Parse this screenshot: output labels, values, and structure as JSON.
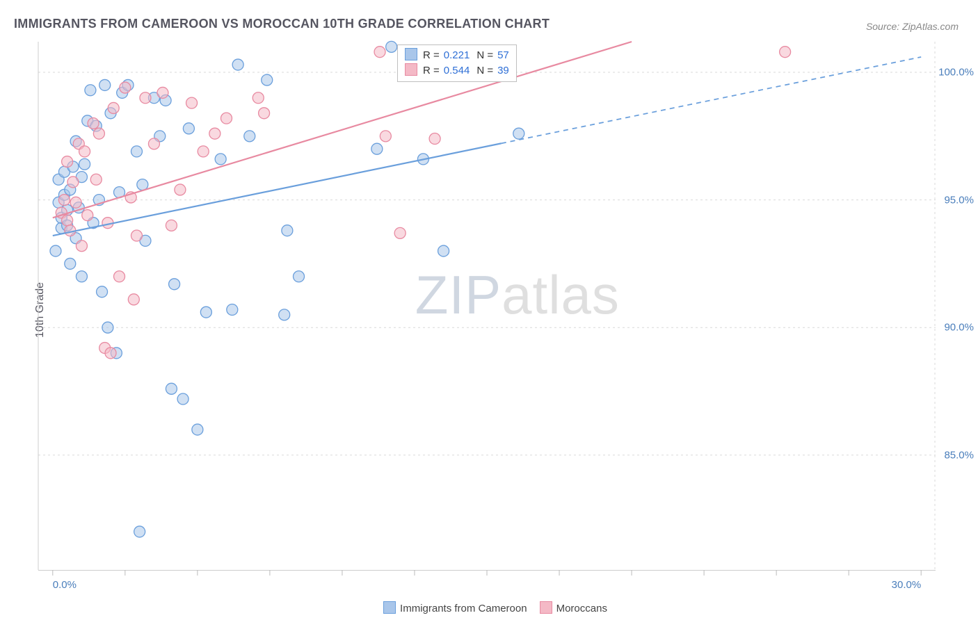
{
  "title": "IMMIGRANTS FROM CAMEROON VS MOROCCAN 10TH GRADE CORRELATION CHART",
  "source": "Source: ZipAtlas.com",
  "ylabel": "10th Grade",
  "watermark": {
    "zip": "ZIP",
    "atlas": "atlas"
  },
  "chart": {
    "type": "scatter",
    "background_color": "#ffffff",
    "grid_color": "#d9d9d9",
    "axis_color": "#cccccc",
    "tick_color": "#bbbbbb",
    "xlim": [
      -0.5,
      30.5
    ],
    "ylim": [
      80.5,
      101.2
    ],
    "y_ticks": [
      85.0,
      90.0,
      95.0,
      100.0
    ],
    "y_tick_labels": [
      "85.0%",
      "90.0%",
      "95.0%",
      "100.0%"
    ],
    "x_tick_end_labels": {
      "left": "0.0%",
      "right": "30.0%"
    },
    "x_minor_ticks": [
      0,
      2.5,
      5,
      7.5,
      10,
      12.5,
      15,
      17.5,
      20,
      22.5,
      25,
      27.5,
      30
    ],
    "marker_radius": 8,
    "marker_stroke_width": 1.3,
    "line_width": 2.2,
    "series": [
      {
        "name": "Immigrants from Cameroon",
        "fill_color": "#a9c6ea",
        "stroke_color": "#6a9fdc",
        "fill_opacity": 0.55,
        "R": "0.221",
        "N": "57",
        "trend": {
          "x1": 0,
          "y1": 93.6,
          "x2": 30,
          "y2": 100.6,
          "solid_until_x": 15.5
        },
        "points": [
          [
            0.1,
            93.0
          ],
          [
            0.2,
            94.9
          ],
          [
            0.2,
            95.8
          ],
          [
            0.3,
            93.9
          ],
          [
            0.3,
            94.3
          ],
          [
            0.4,
            95.2
          ],
          [
            0.4,
            96.1
          ],
          [
            0.5,
            94.0
          ],
          [
            0.5,
            94.6
          ],
          [
            0.6,
            95.4
          ],
          [
            0.7,
            96.3
          ],
          [
            0.8,
            93.5
          ],
          [
            0.8,
            97.3
          ],
          [
            0.9,
            94.7
          ],
          [
            1.0,
            95.9
          ],
          [
            1.1,
            96.4
          ],
          [
            1.2,
            98.1
          ],
          [
            1.3,
            99.3
          ],
          [
            1.4,
            94.1
          ],
          [
            1.5,
            97.9
          ],
          [
            1.6,
            95.0
          ],
          [
            1.7,
            91.4
          ],
          [
            1.8,
            99.5
          ],
          [
            1.9,
            90.0
          ],
          [
            2.0,
            98.4
          ],
          [
            2.2,
            89.0
          ],
          [
            2.3,
            95.3
          ],
          [
            2.4,
            99.2
          ],
          [
            2.6,
            99.5
          ],
          [
            2.9,
            96.9
          ],
          [
            3.1,
            95.6
          ],
          [
            3.2,
            93.4
          ],
          [
            3.5,
            99.0
          ],
          [
            3.7,
            97.5
          ],
          [
            3.9,
            98.9
          ],
          [
            4.1,
            87.6
          ],
          [
            4.2,
            91.7
          ],
          [
            4.5,
            87.2
          ],
          [
            4.7,
            97.8
          ],
          [
            5.0,
            86.0
          ],
          [
            5.3,
            90.6
          ],
          [
            5.8,
            96.6
          ],
          [
            6.2,
            90.7
          ],
          [
            6.4,
            100.3
          ],
          [
            6.8,
            97.5
          ],
          [
            7.4,
            99.7
          ],
          [
            8.0,
            90.5
          ],
          [
            8.1,
            93.8
          ],
          [
            8.5,
            92.0
          ],
          [
            3.0,
            82.0
          ],
          [
            11.2,
            97.0
          ],
          [
            11.7,
            101.0
          ],
          [
            12.8,
            96.6
          ],
          [
            13.5,
            93.0
          ],
          [
            16.1,
            97.6
          ],
          [
            0.6,
            92.5
          ],
          [
            1.0,
            92.0
          ]
        ]
      },
      {
        "name": "Moroccans",
        "fill_color": "#f4b9c6",
        "stroke_color": "#e88aa1",
        "fill_opacity": 0.55,
        "R": "0.544",
        "N": "39",
        "trend": {
          "x1": 0,
          "y1": 94.3,
          "x2": 20,
          "y2": 101.2,
          "solid_until_x": 20
        },
        "points": [
          [
            0.3,
            94.5
          ],
          [
            0.4,
            95.0
          ],
          [
            0.5,
            94.2
          ],
          [
            0.6,
            93.8
          ],
          [
            0.7,
            95.7
          ],
          [
            0.8,
            94.9
          ],
          [
            0.9,
            97.2
          ],
          [
            1.0,
            93.2
          ],
          [
            1.1,
            96.9
          ],
          [
            1.2,
            94.4
          ],
          [
            1.4,
            98.0
          ],
          [
            1.5,
            95.8
          ],
          [
            1.6,
            97.6
          ],
          [
            1.8,
            89.2
          ],
          [
            1.9,
            94.1
          ],
          [
            2.1,
            98.6
          ],
          [
            2.3,
            92.0
          ],
          [
            2.5,
            99.4
          ],
          [
            2.7,
            95.1
          ],
          [
            2.9,
            93.6
          ],
          [
            3.2,
            99.0
          ],
          [
            3.5,
            97.2
          ],
          [
            3.8,
            99.2
          ],
          [
            2.0,
            89.0
          ],
          [
            4.4,
            95.4
          ],
          [
            4.8,
            98.8
          ],
          [
            5.2,
            96.9
          ],
          [
            5.6,
            97.6
          ],
          [
            6.0,
            98.2
          ],
          [
            2.8,
            91.1
          ],
          [
            7.1,
            99.0
          ],
          [
            7.3,
            98.4
          ],
          [
            4.1,
            94.0
          ],
          [
            11.3,
            100.8
          ],
          [
            11.5,
            97.5
          ],
          [
            12.0,
            93.7
          ],
          [
            13.2,
            97.4
          ],
          [
            25.3,
            100.8
          ],
          [
            0.5,
            96.5
          ]
        ]
      }
    ],
    "bottom_legend": [
      {
        "label": "Immigrants from Cameroon",
        "fill": "#a9c6ea",
        "stroke": "#6a9fdc"
      },
      {
        "label": "Moroccans",
        "fill": "#f4b9c6",
        "stroke": "#e88aa1"
      }
    ]
  }
}
